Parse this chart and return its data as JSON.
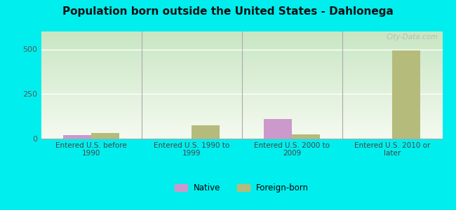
{
  "title": "Population born outside the United States - Dahlonega",
  "background_color": "#00EEEE",
  "plot_bg_top": "#f5f5f5",
  "plot_bg_bottom": "#d8ecd0",
  "categories": [
    "Entered U.S. before\n1990",
    "Entered U.S. 1990 to\n1999",
    "Entered U.S. 2000 to\n2009",
    "Entered U.S. 2010 or\nlater"
  ],
  "native_values": [
    20,
    0,
    110,
    0
  ],
  "foreign_born_values": [
    30,
    75,
    25,
    495
  ],
  "native_color": "#cc99cc",
  "foreign_born_color": "#b5bb7a",
  "yticks": [
    0,
    250,
    500
  ],
  "ylim": [
    0,
    600
  ],
  "bar_width": 0.28,
  "watermark": "City-Data.com",
  "legend_native": "Native",
  "legend_foreign": "Foreign-born"
}
